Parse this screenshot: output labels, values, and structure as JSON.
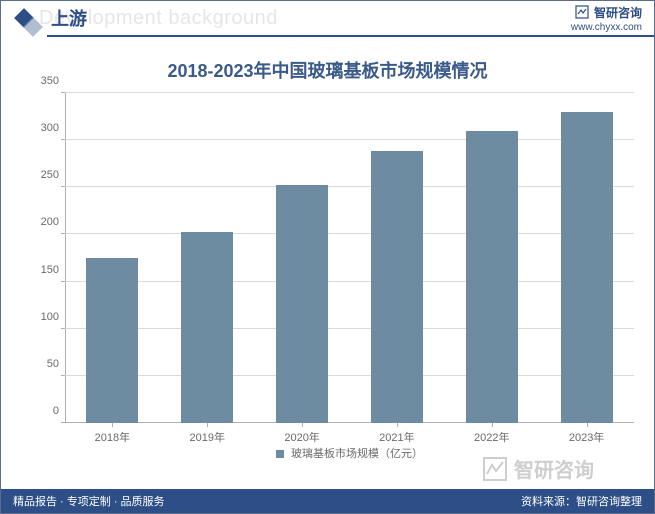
{
  "header": {
    "bg_text": "Development background",
    "tab_label": "上游",
    "brand_name": "智研咨询",
    "brand_url": "www.chyxx.com",
    "line_color": "#2d4e86",
    "diamond_dark": "#2d4e86",
    "diamond_light": "#8fa3bc"
  },
  "chart": {
    "type": "bar",
    "title": "2018-2023年中国玻璃基板市场规模情况",
    "title_color": "#3a5a8a",
    "title_fontsize": 18,
    "categories": [
      "2018年",
      "2019年",
      "2020年",
      "2021年",
      "2022年",
      "2023年"
    ],
    "values": [
      175,
      203,
      252,
      288,
      310,
      330
    ],
    "bar_color": "#6d8ba1",
    "ylim": [
      0,
      350
    ],
    "ytick_step": 50,
    "background_color": "#ffffff",
    "grid_color": "#d9d9d9",
    "axis_color": "#b0b0b0",
    "tick_label_color": "#6a6a6a",
    "tick_fontsize": 11,
    "bar_width_ratio": 0.55,
    "legend_label": "玻璃基板市场规模（亿元）"
  },
  "watermark": {
    "text": "智研咨询",
    "color": "#c9c9c9"
  },
  "footer": {
    "left": "精品报告 · 专项定制 · 品质服务",
    "right": "资料来源：智研咨询整理",
    "bg_color": "#2d4e86",
    "text_color": "#ffffff"
  }
}
